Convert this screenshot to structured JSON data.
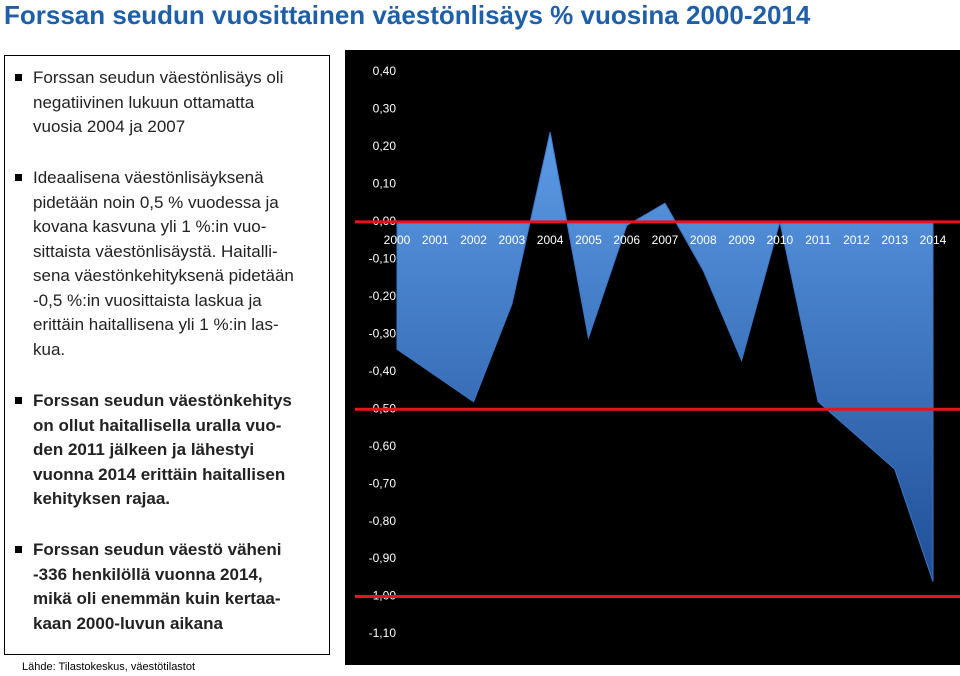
{
  "slide": {
    "title": "Forssan seudun vuosittainen väestönlisäys % vuosina 2000-2014",
    "bullets": [
      {
        "bold": false,
        "lines": [
          "Forssan seudun väestönlisäys oli",
          "negatiivinen lukuun ottamatta",
          "vuosia 2004 ja 2007"
        ]
      },
      {
        "bold": false,
        "lines": [
          "Ideaalisena väestönlisäyksenä",
          "pidetään noin 0,5 % vuodessa ja",
          "kovana kasvuna yli 1 %:in vuo-",
          "sittaista väestönlisäystä. Haitalli-",
          "sena väestönkehityksenä pidetään",
          "-0,5 %:in vuosittaista laskua ja",
          "erittäin haitallisena yli 1 %:in las-",
          "kua."
        ]
      },
      {
        "bold": true,
        "lines": [
          "Forssan seudun väestönkehitys",
          "on ollut haitallisella uralla vuo-",
          "den 2011 jälkeen ja lähestyi",
          "vuonna 2014 erittäin haitallisen",
          "kehityksen rajaa."
        ]
      },
      {
        "bold": true,
        "lines": [
          "Forssan seudun väestö väheni",
          "-336 henkilöllä vuonna 2014,",
          "mikä oli enemmän kuin kertaa-",
          "kaan 2000-luvun aikana"
        ]
      }
    ],
    "source": "Lähde: Tilastokeskus, väestötilastot"
  },
  "chart_data": {
    "type": "area",
    "categories": [
      "2000",
      "2001",
      "2002",
      "2003",
      "2004",
      "2005",
      "2006",
      "2007",
      "2008",
      "2009",
      "2010",
      "2011",
      "2012",
      "2013",
      "2014"
    ],
    "values": [
      -0.34,
      -0.41,
      -0.48,
      -0.22,
      0.24,
      -0.31,
      -0.01,
      0.05,
      -0.13,
      -0.37,
      0.0,
      -0.48,
      -0.57,
      -0.66,
      -0.96
    ],
    "color": "#3a78c9",
    "ylim": [
      -1.1,
      0.4
    ],
    "yticks": [
      {
        "value": 0.4,
        "label": "0,40"
      },
      {
        "value": 0.3,
        "label": "0,30"
      },
      {
        "value": 0.2,
        "label": "0,20"
      },
      {
        "value": 0.1,
        "label": "0,10"
      },
      {
        "value": 0,
        "label": "0,00"
      },
      {
        "value": -0.1,
        "label": "-0,10"
      },
      {
        "value": -0.2,
        "label": "-0,20"
      },
      {
        "value": -0.3,
        "label": "-0,30"
      },
      {
        "value": -0.4,
        "label": "-0,40"
      },
      {
        "value": -0.5,
        "label": "-0,50"
      },
      {
        "value": -0.6,
        "label": "-0,60"
      },
      {
        "value": -0.7,
        "label": "-0,70"
      },
      {
        "value": -0.8,
        "label": "-0,80"
      },
      {
        "value": -0.9,
        "label": "-0,90"
      },
      {
        "value": -1,
        "label": "-1,00"
      },
      {
        "value": -1.1,
        "label": "-1,10"
      }
    ],
    "reference_lines": [
      0,
      -0.5,
      -1
    ],
    "reference_color": "#e8141b",
    "background": "#000000"
  }
}
